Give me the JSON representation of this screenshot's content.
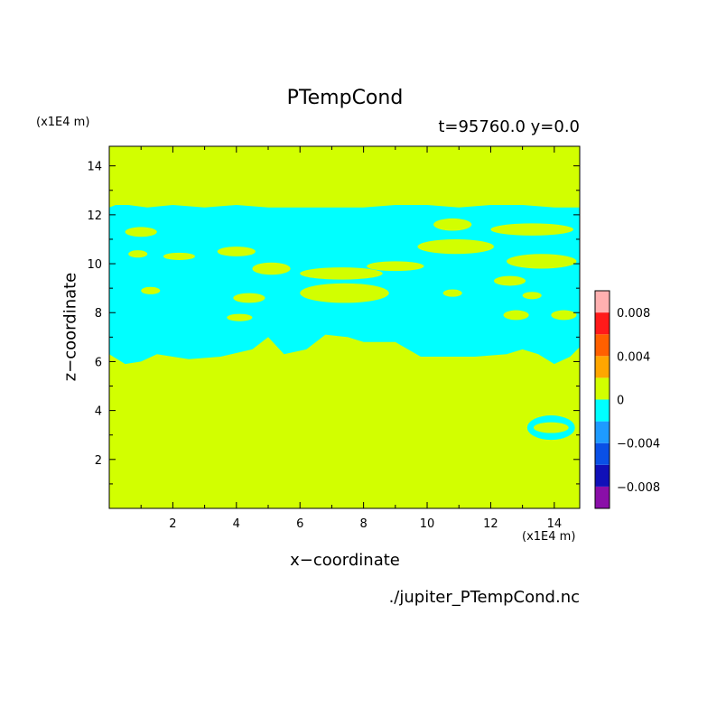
{
  "chart_data": {
    "type": "heatmap",
    "title": "PTempCond",
    "subtitle": "t=95760.0 y=0.0",
    "xlabel": "x−coordinate",
    "ylabel": "z−coordinate",
    "x_unit": "(x1E4 m)",
    "y_unit": "(x1E4 m)",
    "source": "./jupiter_PTempCond.nc",
    "xlim": [
      0.0,
      14.8
    ],
    "ylim": [
      0.0,
      14.8
    ],
    "x_ticks": [
      2,
      4,
      6,
      8,
      10,
      12,
      14
    ],
    "y_ticks": [
      2,
      4,
      6,
      8,
      10,
      12,
      14
    ],
    "colorbar": {
      "levels": [
        -0.01,
        -0.008,
        -0.006,
        -0.004,
        -0.002,
        0.0,
        0.002,
        0.004,
        0.006,
        0.008,
        0.01
      ],
      "colors": [
        "#8a0ea8",
        "#1010b8",
        "#0a50e6",
        "#1e9bff",
        "#00ffff",
        "#d2ff00",
        "#ffa600",
        "#ff6000",
        "#ff1a1a",
        "#ffb0b0"
      ],
      "tick_labels": [
        "−0.008",
        "−0.004",
        "0",
        "0.004",
        "0.008"
      ],
      "tick_values": [
        -0.008,
        -0.004,
        0.0,
        0.004,
        0.008
      ]
    },
    "field": {
      "background_value": 0.0,
      "negative_band": {
        "value": -0.001,
        "upper_boundary": {
          "x": [
            0.0,
            0.2,
            0.6,
            1.2,
            2.0,
            3.0,
            4.0,
            5.0,
            6.0,
            7.0,
            8.0,
            9.0,
            10.0,
            11.0,
            12.0,
            13.0,
            14.0,
            14.8
          ],
          "z": [
            12.3,
            12.4,
            12.4,
            12.3,
            12.4,
            12.3,
            12.4,
            12.3,
            12.3,
            12.3,
            12.3,
            12.4,
            12.4,
            12.3,
            12.4,
            12.4,
            12.3,
            12.3
          ]
        },
        "lower_boundary": {
          "x": [
            0.0,
            0.5,
            1.0,
            1.5,
            2.5,
            3.5,
            4.5,
            5.0,
            5.5,
            6.2,
            6.8,
            7.5,
            8.0,
            9.0,
            9.8,
            10.5,
            11.5,
            12.5,
            13.0,
            13.5,
            14.0,
            14.5,
            14.8
          ],
          "z": [
            6.3,
            5.9,
            6.0,
            6.3,
            6.1,
            6.2,
            6.5,
            7.0,
            6.3,
            6.5,
            7.1,
            7.0,
            6.8,
            6.8,
            6.2,
            6.2,
            6.2,
            6.3,
            6.5,
            6.3,
            5.9,
            6.2,
            6.6
          ]
        },
        "positive_islands": [
          {
            "x": 1.0,
            "z": 11.3,
            "rx": 0.5,
            "rz": 0.2
          },
          {
            "x": 0.9,
            "z": 10.4,
            "rx": 0.3,
            "rz": 0.15
          },
          {
            "x": 2.2,
            "z": 10.3,
            "rx": 0.5,
            "rz": 0.15
          },
          {
            "x": 4.0,
            "z": 10.5,
            "rx": 0.6,
            "rz": 0.2
          },
          {
            "x": 5.1,
            "z": 9.8,
            "rx": 0.6,
            "rz": 0.25
          },
          {
            "x": 7.3,
            "z": 9.6,
            "rx": 1.3,
            "rz": 0.25
          },
          {
            "x": 7.4,
            "z": 8.8,
            "rx": 1.4,
            "rz": 0.4
          },
          {
            "x": 9.0,
            "z": 9.9,
            "rx": 0.9,
            "rz": 0.2
          },
          {
            "x": 10.8,
            "z": 11.6,
            "rx": 0.6,
            "rz": 0.25
          },
          {
            "x": 10.9,
            "z": 10.7,
            "rx": 1.2,
            "rz": 0.3
          },
          {
            "x": 13.3,
            "z": 11.4,
            "rx": 1.3,
            "rz": 0.25
          },
          {
            "x": 13.6,
            "z": 10.1,
            "rx": 1.1,
            "rz": 0.3
          },
          {
            "x": 12.6,
            "z": 9.3,
            "rx": 0.5,
            "rz": 0.2
          },
          {
            "x": 4.4,
            "z": 8.6,
            "rx": 0.5,
            "rz": 0.2
          },
          {
            "x": 1.3,
            "z": 8.9,
            "rx": 0.3,
            "rz": 0.15
          },
          {
            "x": 4.1,
            "z": 7.8,
            "rx": 0.4,
            "rz": 0.15
          },
          {
            "x": 12.8,
            "z": 7.9,
            "rx": 0.4,
            "rz": 0.2
          },
          {
            "x": 14.3,
            "z": 7.9,
            "rx": 0.4,
            "rz": 0.2
          },
          {
            "x": 10.8,
            "z": 8.8,
            "rx": 0.3,
            "rz": 0.15
          },
          {
            "x": 13.3,
            "z": 8.7,
            "rx": 0.3,
            "rz": 0.15
          },
          {
            "x": 0.8,
            "z": 12.55,
            "rx": 0.4,
            "rz": 0.12
          },
          {
            "x": 3.4,
            "z": 12.5,
            "rx": 0.5,
            "rz": 0.12
          },
          {
            "x": 6.6,
            "z": 12.5,
            "rx": 0.6,
            "rz": 0.12
          },
          {
            "x": 10.7,
            "z": 12.6,
            "rx": 0.6,
            "rz": 0.15
          },
          {
            "x": 12.3,
            "z": 12.55,
            "rx": 0.5,
            "rz": 0.12
          },
          {
            "x": 14.2,
            "z": 12.5,
            "rx": 0.4,
            "rz": 0.12
          }
        ]
      },
      "negative_ring": {
        "value": -0.001,
        "x": 13.9,
        "z": 3.3,
        "rx": 0.75,
        "rz": 0.5,
        "inner_rx": 0.55,
        "inner_rz": 0.22
      }
    }
  }
}
